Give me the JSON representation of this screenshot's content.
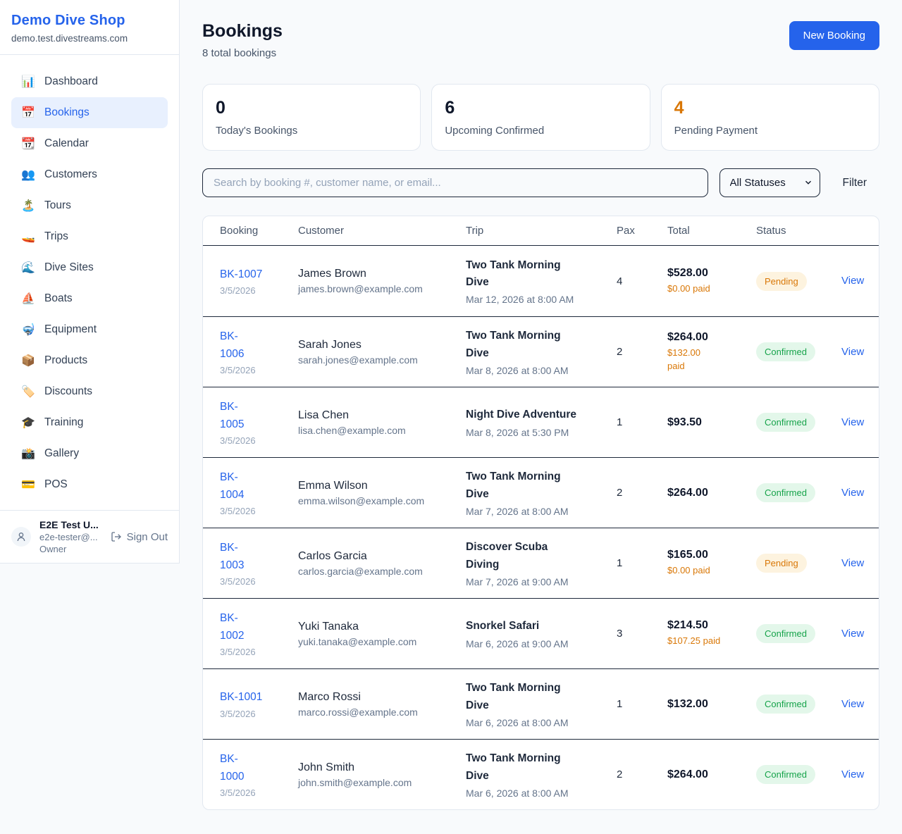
{
  "sidebar": {
    "brand": "Demo Dive Shop",
    "domain": "demo.test.divestreams.com",
    "items": [
      {
        "label": "Dashboard",
        "icon": "📊",
        "icon_name": "bar-chart-icon",
        "active": false
      },
      {
        "label": "Bookings",
        "icon": "📅",
        "icon_name": "calendar-icon",
        "active": true
      },
      {
        "label": "Calendar",
        "icon": "📆",
        "icon_name": "tear-off-calendar-icon",
        "active": false
      },
      {
        "label": "Customers",
        "icon": "👥",
        "icon_name": "people-icon",
        "active": false
      },
      {
        "label": "Tours",
        "icon": "🏝️",
        "icon_name": "island-icon",
        "active": false
      },
      {
        "label": "Trips",
        "icon": "🚤",
        "icon_name": "speedboat-icon",
        "active": false
      },
      {
        "label": "Dive Sites",
        "icon": "🌊",
        "icon_name": "wave-icon",
        "active": false
      },
      {
        "label": "Boats",
        "icon": "⛵",
        "icon_name": "sailboat-icon",
        "active": false
      },
      {
        "label": "Equipment",
        "icon": "🤿",
        "icon_name": "diving-mask-icon",
        "active": false
      },
      {
        "label": "Products",
        "icon": "📦",
        "icon_name": "package-icon",
        "active": false
      },
      {
        "label": "Discounts",
        "icon": "🏷️",
        "icon_name": "tag-icon",
        "active": false
      },
      {
        "label": "Training",
        "icon": "🎓",
        "icon_name": "graduation-cap-icon",
        "active": false
      },
      {
        "label": "Gallery",
        "icon": "📸",
        "icon_name": "camera-icon",
        "active": false
      },
      {
        "label": "POS",
        "icon": "💳",
        "icon_name": "credit-card-icon",
        "active": false
      }
    ],
    "user": {
      "name": "E2E Test U...",
      "email": "e2e-tester@...",
      "role": "Owner",
      "signout_label": "Sign Out"
    }
  },
  "header": {
    "title": "Bookings",
    "subtitle": "8 total bookings",
    "new_booking_label": "New Booking"
  },
  "stats": [
    {
      "value": "0",
      "label": "Today's Bookings",
      "color": "#0f172a"
    },
    {
      "value": "6",
      "label": "Upcoming Confirmed",
      "color": "#0f172a"
    },
    {
      "value": "4",
      "label": "Pending Payment",
      "color": "#d97706"
    }
  ],
  "controls": {
    "search_placeholder": "Search by booking #, customer name, or email...",
    "status_filter": "All Statuses",
    "filter_label": "Filter"
  },
  "table": {
    "columns": [
      "Booking",
      "Customer",
      "Trip",
      "Pax",
      "Total",
      "Status"
    ],
    "view_label": "View",
    "rows": [
      {
        "id": "BK-1007",
        "id_wrap": false,
        "date": "3/5/2026",
        "customer": "James Brown",
        "email": "james.brown@example.com",
        "trip": "Two Tank Morning Dive",
        "trip_wrap": true,
        "trip_datetime": "Mar 12, 2026 at 8:00 AM",
        "pax": "4",
        "total": "$528.00",
        "paid": "$0.00 paid",
        "paid_wrap": false,
        "status": "Pending"
      },
      {
        "id": "BK-1006",
        "id_wrap": true,
        "date": "3/5/2026",
        "customer": "Sarah Jones",
        "email": "sarah.jones@example.com",
        "trip": "Two Tank Morning Dive",
        "trip_wrap": true,
        "trip_datetime": "Mar 8, 2026 at 8:00 AM",
        "pax": "2",
        "total": "$264.00",
        "paid": "$132.00 paid",
        "paid_wrap": true,
        "status": "Confirmed"
      },
      {
        "id": "BK-1005",
        "id_wrap": true,
        "date": "3/5/2026",
        "customer": "Lisa Chen",
        "email": "lisa.chen@example.com",
        "trip": "Night Dive Adventure",
        "trip_wrap": false,
        "trip_datetime": "Mar 8, 2026 at 5:30 PM",
        "pax": "1",
        "total": "$93.50",
        "paid": "",
        "paid_wrap": false,
        "status": "Confirmed"
      },
      {
        "id": "BK-1004",
        "id_wrap": true,
        "date": "3/5/2026",
        "customer": "Emma Wilson",
        "email": "emma.wilson@example.com",
        "trip": "Two Tank Morning Dive",
        "trip_wrap": true,
        "trip_datetime": "Mar 7, 2026 at 8:00 AM",
        "pax": "2",
        "total": "$264.00",
        "paid": "",
        "paid_wrap": false,
        "status": "Confirmed"
      },
      {
        "id": "BK-1003",
        "id_wrap": true,
        "date": "3/5/2026",
        "customer": "Carlos Garcia",
        "email": "carlos.garcia@example.com",
        "trip": "Discover Scuba Diving",
        "trip_wrap": true,
        "trip_datetime": "Mar 7, 2026 at 9:00 AM",
        "pax": "1",
        "total": "$165.00",
        "paid": "$0.00 paid",
        "paid_wrap": false,
        "status": "Pending"
      },
      {
        "id": "BK-1002",
        "id_wrap": true,
        "date": "3/5/2026",
        "customer": "Yuki Tanaka",
        "email": "yuki.tanaka@example.com",
        "trip": "Snorkel Safari",
        "trip_wrap": false,
        "trip_datetime": "Mar 6, 2026 at 9:00 AM",
        "pax": "3",
        "total": "$214.50",
        "paid": "$107.25 paid",
        "paid_wrap": false,
        "status": "Confirmed"
      },
      {
        "id": "BK-1001",
        "id_wrap": false,
        "date": "3/5/2026",
        "customer": "Marco Rossi",
        "email": "marco.rossi@example.com",
        "trip": "Two Tank Morning Dive",
        "trip_wrap": true,
        "trip_datetime": "Mar 6, 2026 at 8:00 AM",
        "pax": "1",
        "total": "$132.00",
        "paid": "",
        "paid_wrap": false,
        "status": "Confirmed"
      },
      {
        "id": "BK-1000",
        "id_wrap": true,
        "date": "3/5/2026",
        "customer": "John Smith",
        "email": "john.smith@example.com",
        "trip": "Two Tank Morning Dive",
        "trip_wrap": true,
        "trip_datetime": "Mar 6, 2026 at 8:00 AM",
        "pax": "2",
        "total": "$264.00",
        "paid": "",
        "paid_wrap": false,
        "status": "Confirmed"
      }
    ]
  },
  "colors": {
    "accent_blue": "#2563eb",
    "pending_text": "#d97706",
    "pending_bg": "#fdf3df",
    "confirmed_text": "#16a34a",
    "confirmed_bg": "#e3f7ea",
    "page_bg": "#f8fafc",
    "sidebar_active_bg": "#e8f0fe"
  }
}
